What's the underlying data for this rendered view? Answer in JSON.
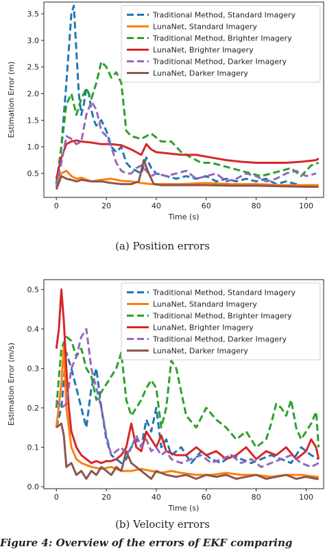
{
  "chart_data": [
    {
      "type": "line",
      "xlabel": "Time (s)",
      "ylabel": "Estimation Error (m)",
      "xlim": [
        -5,
        107
      ],
      "ylim": [
        0.05,
        3.72
      ],
      "xticks": [
        0,
        20,
        40,
        60,
        80,
        100
      ],
      "yticks": [
        0.5,
        1.0,
        1.5,
        2.0,
        2.5,
        3.0,
        3.5
      ],
      "ytick_labels": [
        "0.5",
        "1.0",
        "1.5",
        "2.0",
        "2.5",
        "3.0",
        "3.5"
      ],
      "legend_position": "top-right",
      "series": [
        {
          "name": "Traditional Method, Standard Imagery",
          "color": "#1f77b4",
          "dash": true,
          "x": [
            0,
            2,
            4,
            6,
            7,
            8,
            9,
            10,
            11,
            12,
            13,
            14,
            15,
            16,
            18,
            20,
            22,
            24,
            26,
            28,
            30,
            32,
            34,
            36,
            38,
            40,
            44,
            48,
            52,
            56,
            60,
            64,
            68,
            72,
            76,
            80,
            84,
            88,
            92,
            96,
            100,
            104
          ],
          "y": [
            0.3,
            1.0,
            2.2,
            3.5,
            3.65,
            2.8,
            2.0,
            1.6,
            1.8,
            2.1,
            2.0,
            1.7,
            1.5,
            1.4,
            1.5,
            1.3,
            1.0,
            0.9,
            1.0,
            0.7,
            0.6,
            0.55,
            0.5,
            0.8,
            0.6,
            0.5,
            0.45,
            0.4,
            0.45,
            0.4,
            0.45,
            0.35,
            0.4,
            0.35,
            0.4,
            0.35,
            0.4,
            0.3,
            0.35,
            0.3,
            0.25,
            0.25
          ]
        },
        {
          "name": "LunaNet, Standard Imagery",
          "color": "#ff7f0e",
          "dash": false,
          "x": [
            0,
            2,
            4,
            6,
            8,
            10,
            14,
            18,
            22,
            26,
            30,
            34,
            38,
            42,
            50,
            60,
            70,
            80,
            90,
            100,
            105
          ],
          "y": [
            0.3,
            0.5,
            0.55,
            0.45,
            0.4,
            0.42,
            0.35,
            0.38,
            0.4,
            0.36,
            0.35,
            0.32,
            0.3,
            0.3,
            0.3,
            0.32,
            0.3,
            0.3,
            0.28,
            0.28,
            0.28
          ]
        },
        {
          "name": "Traditional Method, Brighter Imagery",
          "color": "#2ca02c",
          "dash": true,
          "x": [
            0,
            2,
            4,
            6,
            8,
            10,
            12,
            14,
            16,
            18,
            20,
            22,
            24,
            26,
            28,
            30,
            34,
            38,
            42,
            46,
            50,
            54,
            58,
            62,
            66,
            70,
            74,
            78,
            82,
            86,
            90,
            94,
            98,
            102,
            105
          ],
          "y": [
            0.3,
            1.0,
            1.8,
            2.0,
            1.6,
            1.9,
            2.1,
            1.9,
            2.2,
            2.6,
            2.5,
            2.3,
            2.4,
            2.2,
            1.3,
            1.2,
            1.15,
            1.25,
            1.1,
            1.1,
            0.9,
            0.8,
            0.7,
            0.7,
            0.65,
            0.6,
            0.55,
            0.5,
            0.45,
            0.5,
            0.55,
            0.6,
            0.45,
            0.65,
            0.7
          ]
        },
        {
          "name": "LunaNet, Brighter Imagery",
          "color": "#d62728",
          "dash": false,
          "x": [
            0,
            2,
            4,
            6,
            8,
            10,
            14,
            18,
            22,
            26,
            30,
            34,
            36,
            38,
            40,
            44,
            50,
            56,
            62,
            68,
            74,
            80,
            86,
            92,
            98,
            104,
            105
          ],
          "y": [
            0.4,
            0.8,
            1.05,
            1.1,
            1.12,
            1.1,
            1.08,
            1.05,
            1.05,
            1.03,
            0.95,
            0.85,
            1.05,
            0.95,
            0.9,
            0.88,
            0.85,
            0.85,
            0.8,
            0.75,
            0.72,
            0.7,
            0.7,
            0.7,
            0.72,
            0.75,
            0.78
          ]
        },
        {
          "name": "Traditional Method, Darker Imagery",
          "color": "#9467bd",
          "dash": true,
          "x": [
            0,
            2,
            4,
            6,
            8,
            10,
            12,
            14,
            16,
            18,
            20,
            22,
            24,
            26,
            28,
            30,
            32,
            34,
            36,
            38,
            40,
            44,
            48,
            52,
            56,
            60,
            64,
            68,
            72,
            76,
            80,
            84,
            88,
            92,
            96,
            100,
            104
          ],
          "y": [
            0.25,
            0.7,
            1.2,
            1.15,
            1.05,
            1.1,
            1.6,
            1.85,
            1.7,
            1.3,
            1.2,
            1.0,
            0.7,
            0.55,
            0.5,
            0.5,
            0.6,
            0.65,
            0.55,
            0.45,
            0.5,
            0.45,
            0.5,
            0.55,
            0.4,
            0.45,
            0.5,
            0.35,
            0.4,
            0.5,
            0.45,
            0.35,
            0.4,
            0.5,
            0.55,
            0.45,
            0.5
          ]
        },
        {
          "name": "LunaNet, Darker Imagery",
          "color": "#8c564b",
          "dash": false,
          "x": [
            0,
            2,
            4,
            6,
            8,
            10,
            14,
            18,
            22,
            26,
            30,
            33,
            35,
            37,
            39,
            42,
            50,
            60,
            70,
            80,
            90,
            100,
            105
          ],
          "y": [
            0.2,
            0.45,
            0.4,
            0.38,
            0.35,
            0.38,
            0.35,
            0.35,
            0.32,
            0.3,
            0.3,
            0.35,
            0.75,
            0.5,
            0.3,
            0.28,
            0.28,
            0.28,
            0.27,
            0.27,
            0.26,
            0.25,
            0.25
          ]
        }
      ]
    },
    {
      "type": "line",
      "xlabel": "Time (s)",
      "ylabel": "Estimation Error (m/s)",
      "xlim": [
        -5,
        107
      ],
      "ylim": [
        -0.005,
        0.525
      ],
      "xticks": [
        0,
        20,
        40,
        60,
        80,
        100
      ],
      "yticks": [
        0.0,
        0.1,
        0.2,
        0.3,
        0.4,
        0.5
      ],
      "ytick_labels": [
        "0.0",
        "0.1",
        "0.2",
        "0.3",
        "0.4",
        "0.5"
      ],
      "legend_position": "top-right",
      "series": [
        {
          "name": "Traditional Method, Standard Imagery",
          "color": "#1f77b4",
          "dash": true,
          "x": [
            0,
            2,
            4,
            6,
            8,
            10,
            12,
            14,
            16,
            18,
            20,
            22,
            24,
            26,
            28,
            30,
            32,
            34,
            36,
            38,
            40,
            42,
            44,
            46,
            50,
            54,
            58,
            62,
            66,
            70,
            74,
            78,
            82,
            86,
            90,
            94,
            98,
            102,
            105
          ],
          "y": [
            0.15,
            0.2,
            0.34,
            0.3,
            0.25,
            0.2,
            0.15,
            0.25,
            0.3,
            0.2,
            0.12,
            0.08,
            0.07,
            0.06,
            0.07,
            0.1,
            0.12,
            0.1,
            0.17,
            0.14,
            0.2,
            0.1,
            0.12,
            0.08,
            0.1,
            0.06,
            0.09,
            0.07,
            0.06,
            0.08,
            0.07,
            0.06,
            0.07,
            0.08,
            0.07,
            0.06,
            0.1,
            0.08,
            0.07
          ]
        },
        {
          "name": "LunaNet, Standard Imagery",
          "color": "#ff7f0e",
          "dash": false,
          "x": [
            0,
            2,
            3,
            4,
            6,
            8,
            10,
            14,
            18,
            22,
            26,
            30,
            34,
            38,
            42,
            46,
            50,
            56,
            62,
            68,
            74,
            80,
            86,
            92,
            98,
            104,
            105
          ],
          "y": [
            0.15,
            0.26,
            0.36,
            0.2,
            0.1,
            0.07,
            0.06,
            0.05,
            0.045,
            0.05,
            0.04,
            0.04,
            0.045,
            0.04,
            0.035,
            0.04,
            0.035,
            0.03,
            0.03,
            0.035,
            0.03,
            0.03,
            0.025,
            0.03,
            0.03,
            0.025,
            0.025
          ]
        },
        {
          "name": "Traditional Method, Brighter Imagery",
          "color": "#2ca02c",
          "dash": true,
          "x": [
            0,
            2,
            4,
            6,
            8,
            10,
            12,
            14,
            16,
            18,
            20,
            22,
            24,
            26,
            28,
            30,
            32,
            34,
            36,
            38,
            40,
            42,
            44,
            46,
            48,
            50,
            52,
            56,
            60,
            64,
            68,
            72,
            76,
            80,
            84,
            86,
            88,
            90,
            92,
            94,
            96,
            98,
            100,
            102,
            104,
            105
          ],
          "y": [
            0.2,
            0.35,
            0.38,
            0.37,
            0.33,
            0.35,
            0.3,
            0.28,
            0.22,
            0.24,
            0.26,
            0.28,
            0.3,
            0.34,
            0.22,
            0.18,
            0.2,
            0.22,
            0.25,
            0.27,
            0.25,
            0.15,
            0.2,
            0.32,
            0.3,
            0.24,
            0.18,
            0.15,
            0.2,
            0.17,
            0.15,
            0.12,
            0.14,
            0.1,
            0.12,
            0.16,
            0.21,
            0.2,
            0.18,
            0.22,
            0.15,
            0.12,
            0.14,
            0.16,
            0.19,
            0.1
          ]
        },
        {
          "name": "LunaNet, Brighter Imagery",
          "color": "#d62728",
          "dash": false,
          "x": [
            0,
            1,
            2,
            3,
            4,
            5,
            6,
            8,
            10,
            12,
            14,
            16,
            18,
            20,
            22,
            24,
            26,
            28,
            30,
            32,
            34,
            36,
            38,
            40,
            42,
            44,
            48,
            52,
            56,
            60,
            64,
            68,
            72,
            76,
            80,
            84,
            88,
            92,
            96,
            100,
            102,
            104,
            105
          ],
          "y": [
            0.35,
            0.4,
            0.5,
            0.42,
            0.3,
            0.2,
            0.14,
            0.1,
            0.08,
            0.07,
            0.06,
            0.065,
            0.06,
            0.065,
            0.065,
            0.07,
            0.08,
            0.1,
            0.16,
            0.1,
            0.09,
            0.14,
            0.12,
            0.1,
            0.13,
            0.09,
            0.08,
            0.08,
            0.1,
            0.08,
            0.09,
            0.07,
            0.08,
            0.1,
            0.07,
            0.09,
            0.08,
            0.1,
            0.07,
            0.09,
            0.12,
            0.1,
            0.07
          ]
        },
        {
          "name": "Traditional Method, Darker Imagery",
          "color": "#9467bd",
          "dash": true,
          "x": [
            0,
            2,
            4,
            6,
            8,
            10,
            12,
            14,
            16,
            18,
            20,
            22,
            24,
            26,
            28,
            30,
            32,
            34,
            36,
            38,
            40,
            42,
            44,
            46,
            50,
            54,
            58,
            62,
            66,
            70,
            74,
            78,
            82,
            86,
            90,
            94,
            98,
            102,
            105
          ],
          "y": [
            0.22,
            0.2,
            0.21,
            0.3,
            0.33,
            0.38,
            0.4,
            0.3,
            0.25,
            0.2,
            0.13,
            0.08,
            0.09,
            0.1,
            0.08,
            0.1,
            0.13,
            0.1,
            0.12,
            0.09,
            0.1,
            0.08,
            0.09,
            0.07,
            0.06,
            0.07,
            0.08,
            0.06,
            0.07,
            0.08,
            0.06,
            0.07,
            0.05,
            0.06,
            0.07,
            0.08,
            0.06,
            0.05,
            0.06
          ]
        },
        {
          "name": "LunaNet, Darker Imagery",
          "color": "#8c564b",
          "dash": false,
          "x": [
            0,
            2,
            3,
            4,
            6,
            8,
            10,
            12,
            14,
            16,
            18,
            20,
            22,
            24,
            26,
            28,
            30,
            32,
            34,
            36,
            38,
            40,
            44,
            48,
            52,
            56,
            60,
            64,
            68,
            72,
            76,
            80,
            84,
            88,
            92,
            96,
            100,
            104,
            105
          ],
          "y": [
            0.15,
            0.16,
            0.13,
            0.05,
            0.06,
            0.03,
            0.04,
            0.02,
            0.04,
            0.03,
            0.05,
            0.04,
            0.03,
            0.05,
            0.04,
            0.09,
            0.06,
            0.05,
            0.04,
            0.03,
            0.02,
            0.04,
            0.03,
            0.025,
            0.03,
            0.02,
            0.03,
            0.025,
            0.03,
            0.02,
            0.025,
            0.03,
            0.02,
            0.025,
            0.03,
            0.02,
            0.025,
            0.02,
            0.02
          ]
        }
      ]
    }
  ],
  "captions": {
    "a": "(a) Position errors",
    "b": "(b) Velocity errors",
    "bottom_text": "Figure 4: Overview of the errors of EKF comparing"
  }
}
